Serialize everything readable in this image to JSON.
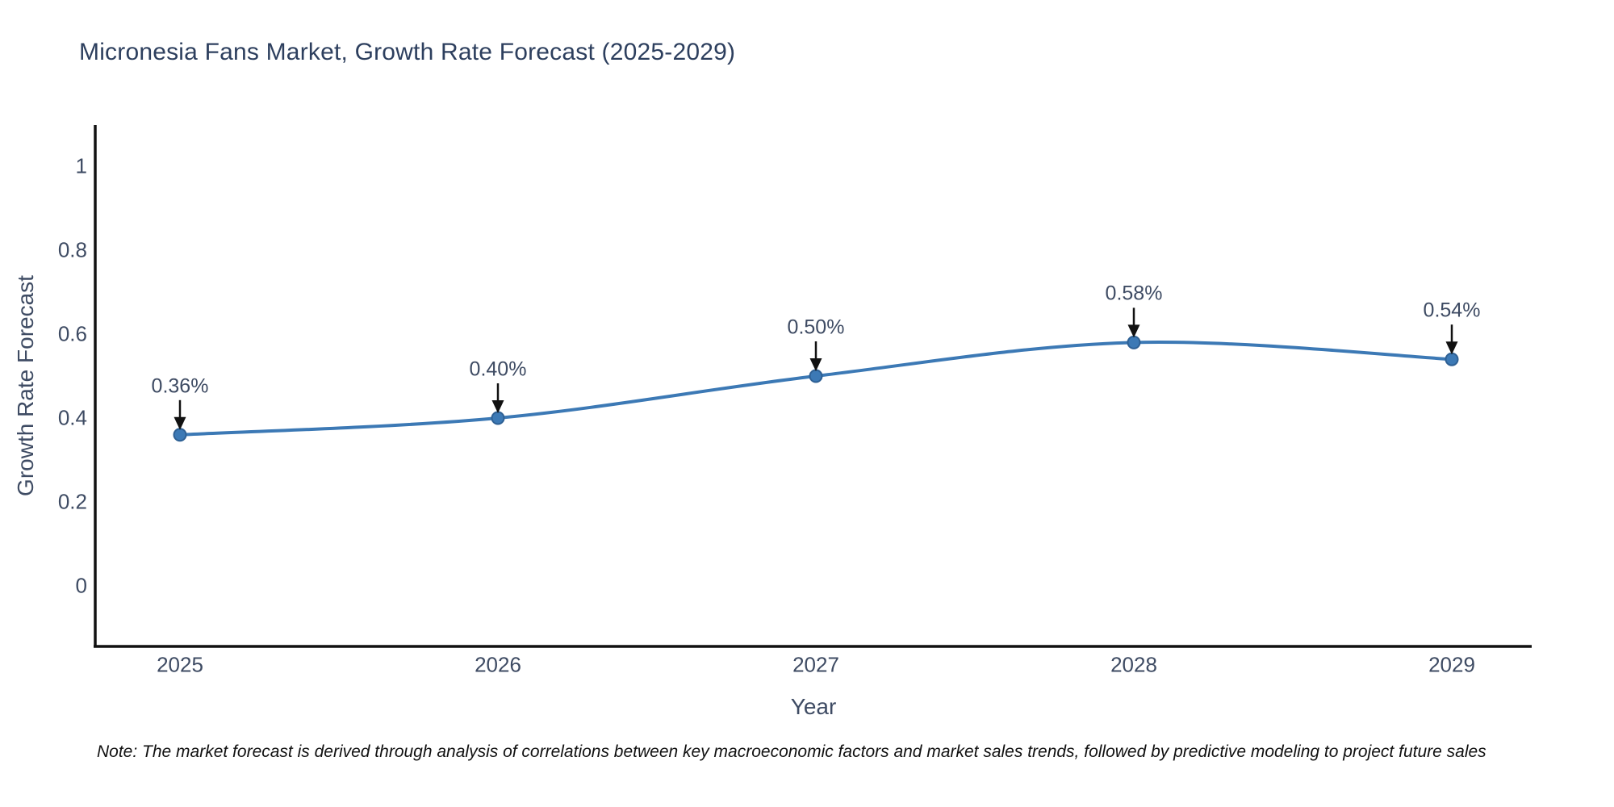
{
  "title": "Micronesia Fans Market, Growth Rate Forecast (2025-2029)",
  "note": "Note: The market forecast is derived through analysis of correlations between key macroeconomic factors and market sales trends, followed by predictive modeling to project future sales",
  "chart_data": {
    "type": "line",
    "title": "Micronesia Fans Market, Growth Rate Forecast (2025-2029)",
    "categories": [
      "2025",
      "2026",
      "2027",
      "2028",
      "2029"
    ],
    "values": [
      0.36,
      0.4,
      0.5,
      0.58,
      0.54
    ],
    "point_labels": [
      "0.36%",
      "0.40%",
      "0.50%",
      "0.58%",
      "0.54%"
    ],
    "xlabel": "Year",
    "ylabel": "Growth Rate Forecast",
    "y_ticks": [
      0,
      0.2,
      0.4,
      0.6,
      0.8,
      1
    ],
    "ylim": [
      -0.145,
      1.1
    ],
    "grid": false,
    "legend": false,
    "line_shape": "spline",
    "colors": {
      "line": "#3c79b5",
      "marker_fill": "#3c79b5",
      "marker_edge": "#2e6094",
      "arrow": "#111111",
      "spine": "#111111",
      "title_text": "#2d3f5e",
      "axis_text": "#3e4b63",
      "note_text": "#111111",
      "background": "#ffffff"
    }
  }
}
